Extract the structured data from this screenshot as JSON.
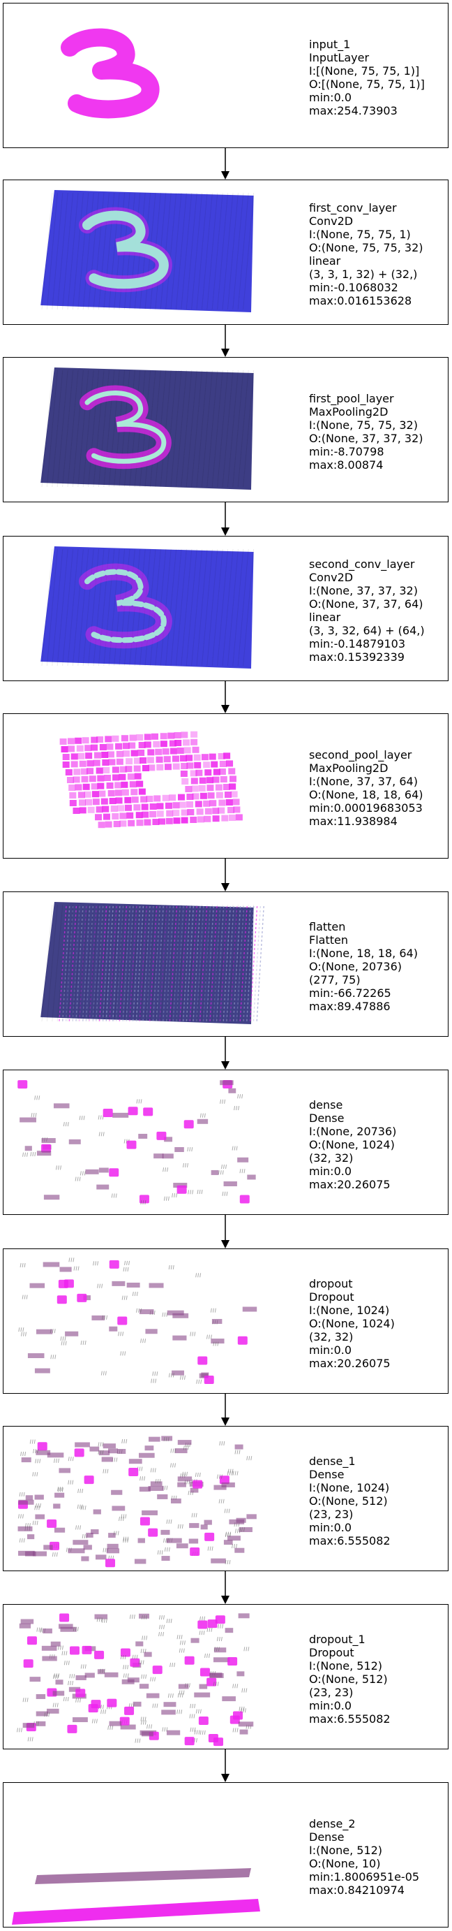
{
  "layers": [
    {
      "lines": [
        "input_1",
        "InputLayer",
        "I:[(None, 75, 75, 1)]",
        "O:[(None, 75, 75, 1)]",
        "min:0.0",
        "max:254.73903"
      ],
      "style": "input"
    },
    {
      "lines": [
        "first_conv_layer",
        "Conv2D",
        "I:(None, 75, 75, 1)",
        "O:(None, 75, 75, 32)",
        "linear",
        "(3, 3, 1, 32) + (32,)",
        "min:-0.1068032",
        "max:0.016153628"
      ],
      "style": "conv"
    },
    {
      "lines": [
        "first_pool_layer",
        "MaxPooling2D",
        "I:(None, 75, 75, 32)",
        "O:(None, 37, 37, 32)",
        "min:-8.70798",
        "max:8.00874"
      ],
      "style": "pool"
    },
    {
      "lines": [
        "second_conv_layer",
        "Conv2D",
        "I:(None, 37, 37, 32)",
        "O:(None, 37, 37, 64)",
        "linear",
        "(3, 3, 32, 64) + (64,)",
        "min:-0.14879103",
        "max:0.15392339"
      ],
      "style": "conv2"
    },
    {
      "lines": [
        "second_pool_layer",
        "MaxPooling2D",
        "I:(None, 37, 37, 64)",
        "O:(None, 18, 18, 64)",
        "min:0.00019683053",
        "max:11.938984"
      ],
      "style": "pool2"
    },
    {
      "lines": [
        "flatten",
        "Flatten",
        "I:(None, 18, 18, 64)",
        "O:(None, 20736)",
        "(277, 75)",
        "min:-66.72265",
        "max:89.47886"
      ],
      "style": "flatten"
    },
    {
      "lines": [
        "dense",
        "Dense",
        "I:(None, 20736)",
        "O:(None, 1024)",
        "(32, 32)",
        "min:0.0",
        "max:20.26075"
      ],
      "style": "sparse"
    },
    {
      "lines": [
        "dropout",
        "Dropout",
        "I:(None, 1024)",
        "O:(None, 1024)",
        "(32, 32)",
        "min:0.0",
        "max:20.26075"
      ],
      "style": "sparse"
    },
    {
      "lines": [
        "dense_1",
        "Dense",
        "I:(None, 1024)",
        "O:(None, 512)",
        "(23, 23)",
        "min:0.0",
        "max:6.555082"
      ],
      "style": "dense"
    },
    {
      "lines": [
        "dropout_1",
        "Dropout",
        "I:(None, 512)",
        "O:(None, 512)",
        "(23, 23)",
        "min:0.0",
        "max:6.555082"
      ],
      "style": "dense"
    },
    {
      "lines": [
        "dense_2",
        "Dense",
        "I:(None, 512)",
        "O:(None, 10)",
        "min:1.8006951e-05",
        "max:0.84210974"
      ],
      "style": "bars"
    }
  ],
  "colors": {
    "magenta": "#ee22ee",
    "blue": "#3030d8",
    "navy": "#2c2c7a",
    "mint": "#a8ffd8",
    "purple": "#8a4a8a"
  }
}
